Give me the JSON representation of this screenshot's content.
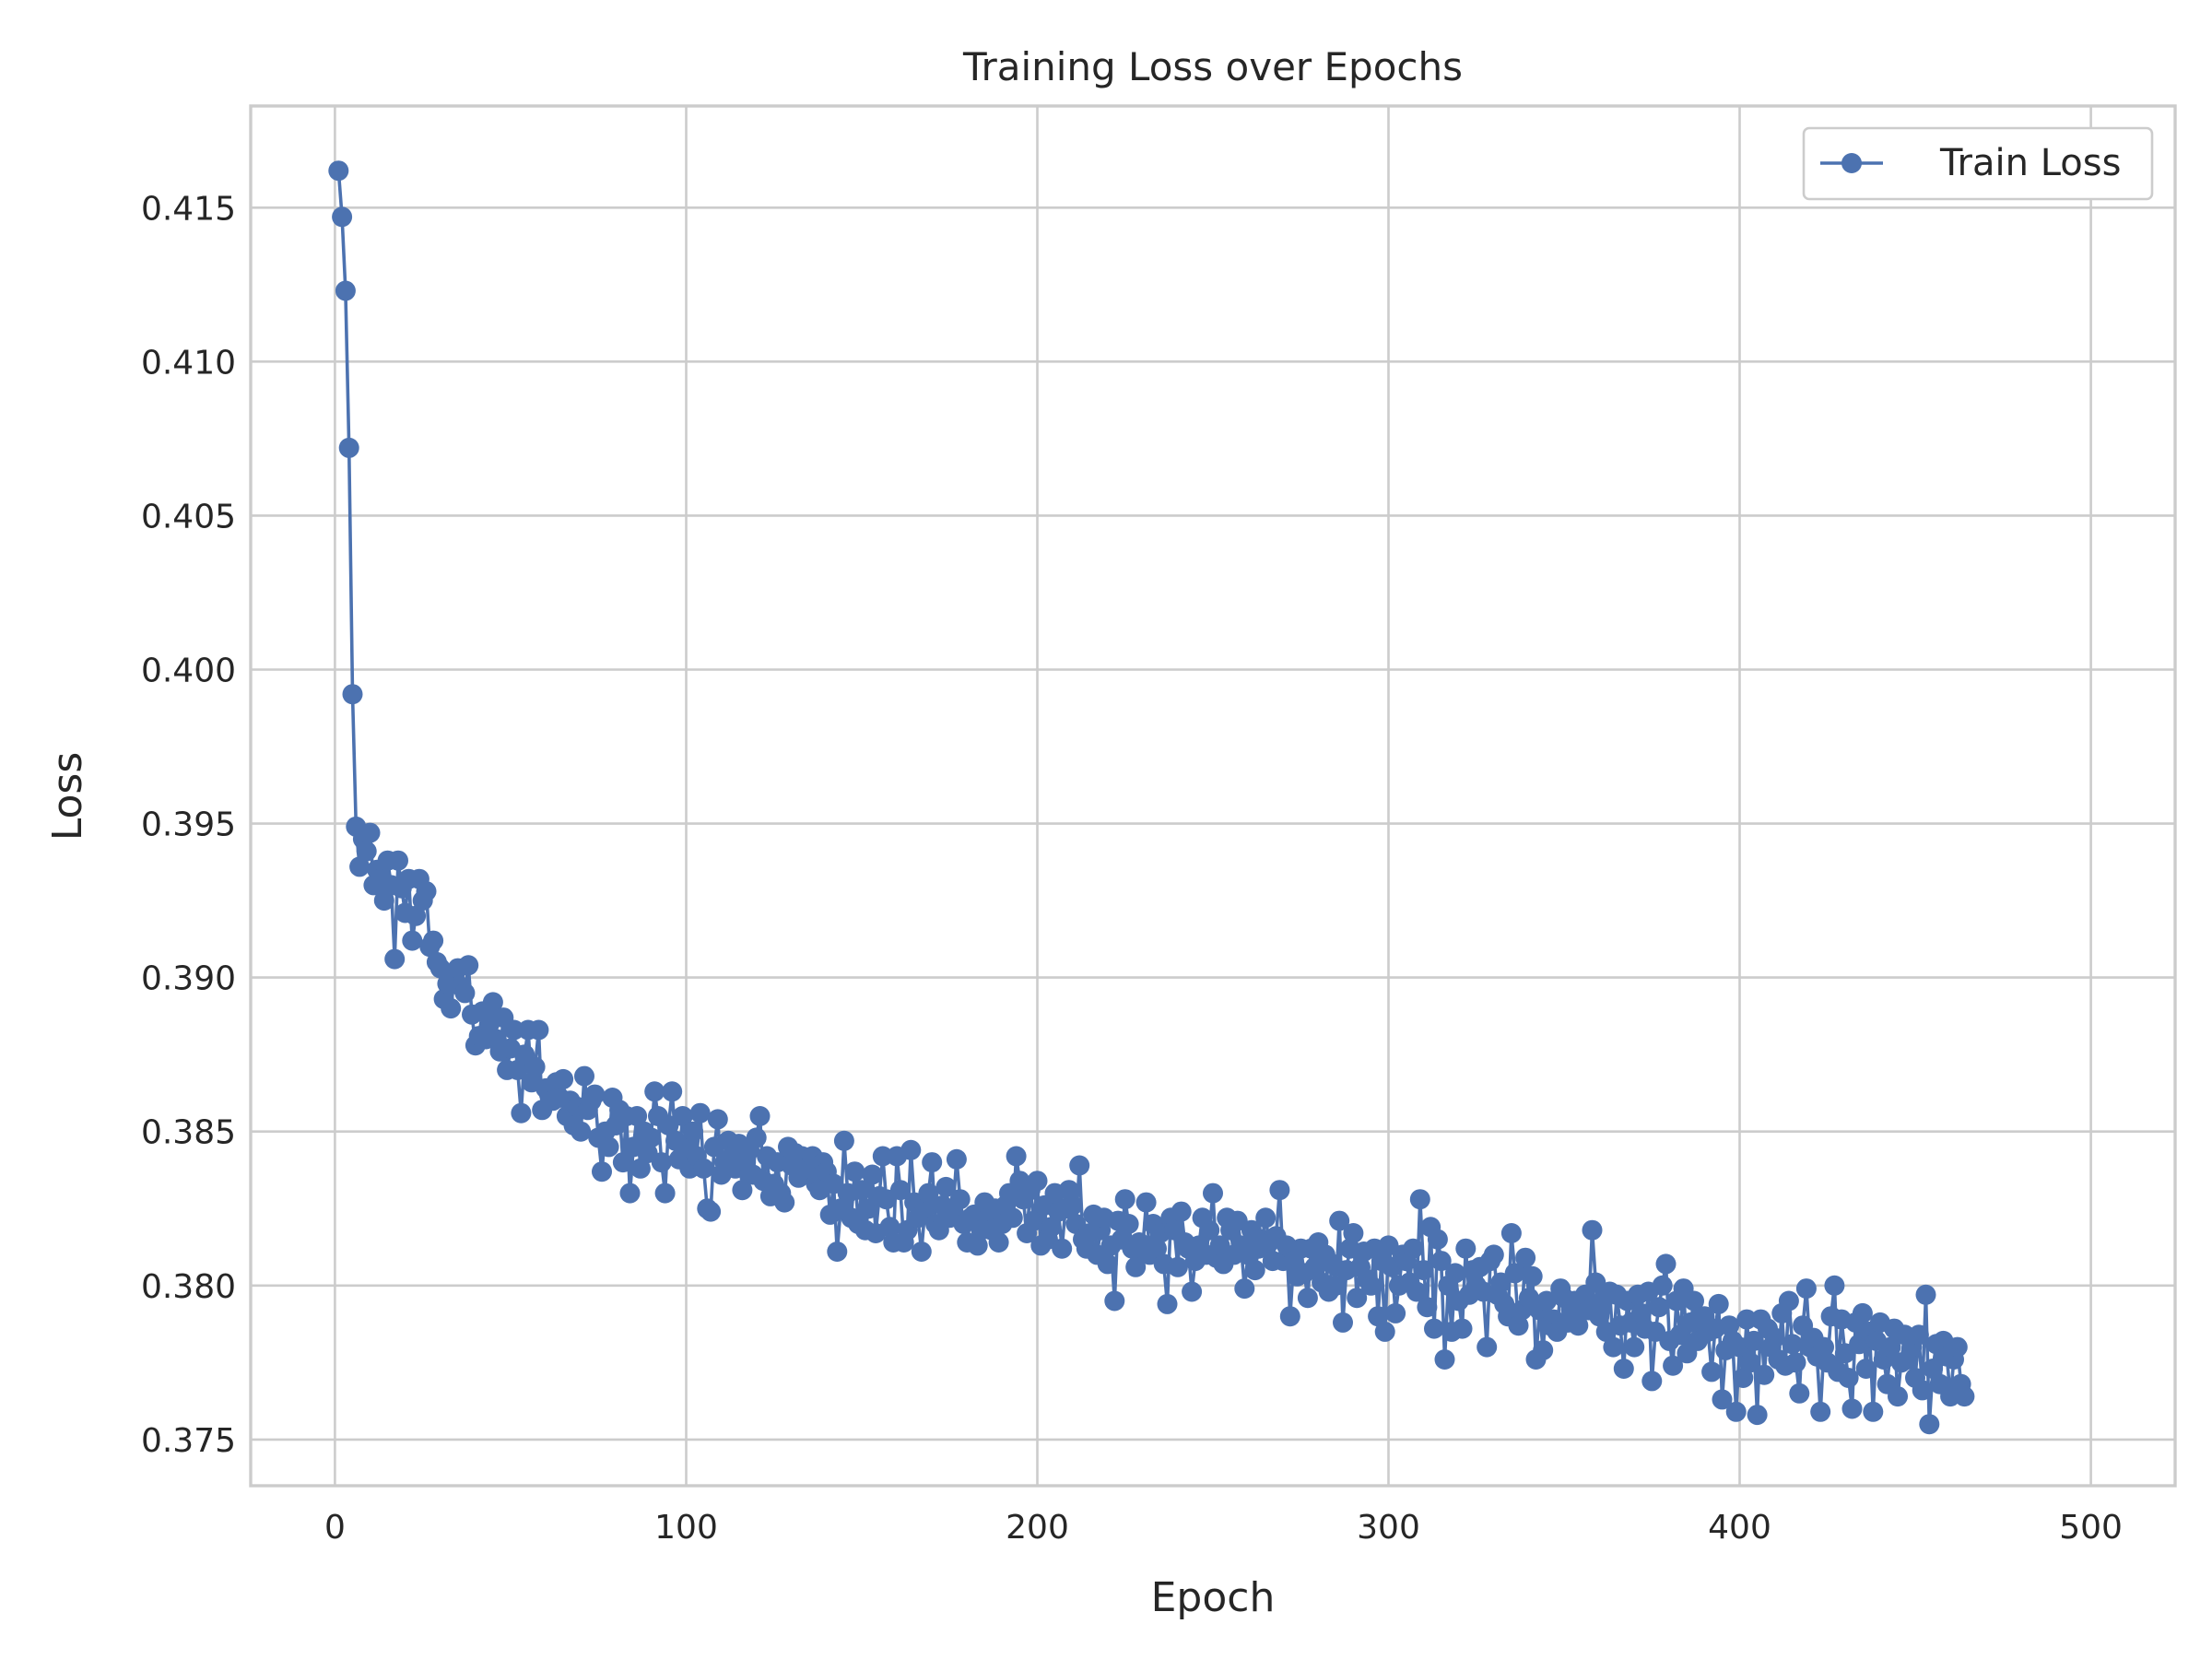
{
  "chart_data": {
    "type": "line",
    "title": "Training Loss over Epochs",
    "xlabel": "Epoch",
    "ylabel": "Loss",
    "xlim": [
      -24,
      524
    ],
    "ylim": [
      0.3735,
      0.4183
    ],
    "xticks": [
      0,
      100,
      200,
      300,
      400,
      500
    ],
    "xtick_labels": [
      "0",
      "100",
      "200",
      "300",
      "400",
      "500"
    ],
    "yticks": [
      0.375,
      0.38,
      0.385,
      0.39,
      0.395,
      0.4,
      0.405,
      0.41,
      0.415
    ],
    "ytick_labels": [
      "0.375",
      "0.380",
      "0.385",
      "0.390",
      "0.395",
      "0.400",
      "0.405",
      "0.410",
      "0.415"
    ],
    "grid": true,
    "legend_position": "top-right",
    "series": [
      {
        "name": "Train Loss",
        "color": "#4c72b0",
        "marker": "circle",
        "x_start": 1,
        "values": [
          0.4162,
          0.4147,
          0.4123,
          0.4072,
          0.3992,
          0.3949,
          0.3936,
          0.3945,
          0.3941,
          0.3947,
          0.393,
          0.3935,
          0.3932,
          0.3925,
          0.3938,
          0.393,
          0.3906,
          0.3938,
          0.3929,
          0.3921,
          0.3932,
          0.3912,
          0.392,
          0.3932,
          0.3925,
          0.3928,
          0.391,
          0.3912,
          0.3905,
          0.3903,
          0.3893,
          0.3898,
          0.389,
          0.39,
          0.3903,
          0.3897,
          0.3895,
          0.3904,
          0.3888,
          0.3878,
          0.3881,
          0.3889,
          0.388,
          0.3885,
          0.3892,
          0.388,
          0.3876,
          0.3887,
          0.387,
          0.3877,
          0.3883,
          0.387,
          0.3856,
          0.3875,
          0.3883,
          0.3866,
          0.3871,
          0.3883,
          0.3857,
          0.3864,
          0.3862,
          0.386,
          0.3866,
          0.3861,
          0.3867,
          0.3855,
          0.386,
          0.3852,
          0.3858,
          0.385,
          0.3868,
          0.3857,
          0.386,
          0.3862,
          0.3848,
          0.3837,
          0.385,
          0.3845,
          0.3861,
          0.3852,
          0.3857,
          0.384,
          0.3855,
          0.383,
          0.3845,
          0.3855,
          0.3838,
          0.385,
          0.3843,
          0.3848,
          0.3863,
          0.3855,
          0.384,
          0.383,
          0.3852,
          0.3863,
          0.3847,
          0.3841,
          0.3855,
          0.3845,
          0.3838,
          0.385,
          0.3842,
          0.3856,
          0.3838,
          0.3825,
          0.3824,
          0.3845,
          0.3854,
          0.3836,
          0.384,
          0.3847,
          0.3842,
          0.3838,
          0.3846,
          0.3831,
          0.384,
          0.3844,
          0.3836,
          0.3848,
          0.3855,
          0.3834,
          0.3842,
          0.3829,
          0.3833,
          0.384,
          0.383,
          0.3827,
          0.3845,
          0.3839,
          0.3843,
          0.3835,
          0.3842,
          0.3838,
          0.3836,
          0.3842,
          0.3833,
          0.3831,
          0.384,
          0.3837,
          0.3823,
          0.3833,
          0.3811,
          0.3825,
          0.3847,
          0.383,
          0.3822,
          0.3837,
          0.382,
          0.3831,
          0.3818,
          0.3825,
          0.3836,
          0.3817,
          0.3829,
          0.3842,
          0.3828,
          0.3819,
          0.3814,
          0.3842,
          0.3831,
          0.3814,
          0.3818,
          0.3844,
          0.3827,
          0.3822,
          0.3811,
          0.3825,
          0.383,
          0.384,
          0.382,
          0.3818,
          0.3826,
          0.3832,
          0.3822,
          0.3825,
          0.3841,
          0.3828,
          0.382,
          0.3814,
          0.3822,
          0.3823,
          0.3813,
          0.3818,
          0.3827,
          0.3822,
          0.3818,
          0.3825,
          0.3814,
          0.382,
          0.3826,
          0.383,
          0.3822,
          0.3842,
          0.3834,
          0.3828,
          0.3817,
          0.3831,
          0.3821,
          0.3834,
          0.3813,
          0.3826,
          0.3815,
          0.3819,
          0.383,
          0.3824,
          0.3812,
          0.3825,
          0.3831,
          0.3826,
          0.382,
          0.3839,
          0.3815,
          0.3812,
          0.3817,
          0.3823,
          0.381,
          0.3818,
          0.3822,
          0.3807,
          0.3813,
          0.3795,
          0.3821,
          0.3815,
          0.3828,
          0.382,
          0.3812,
          0.3806,
          0.3814,
          0.3812,
          0.3827,
          0.381,
          0.382,
          0.3812,
          0.3817,
          0.3807,
          0.3794,
          0.3822,
          0.3818,
          0.3806,
          0.3824,
          0.3814,
          0.3812,
          0.3798,
          0.3808,
          0.3813,
          0.3822,
          0.381,
          0.3818,
          0.383,
          0.3809,
          0.3813,
          0.3807,
          0.3822,
          0.3818,
          0.381,
          0.3821,
          0.3813,
          0.3799,
          0.381,
          0.3818,
          0.3805,
          0.3812,
          0.3815,
          0.3822,
          0.3814,
          0.3808,
          0.3816,
          0.3831,
          0.3808,
          0.3813,
          0.379,
          0.3808,
          0.3803,
          0.3812,
          0.3804,
          0.3796,
          0.3812,
          0.3806,
          0.3814,
          0.3801,
          0.381,
          0.3798,
          0.3807,
          0.38,
          0.3821,
          0.3788,
          0.3805,
          0.3812,
          0.3817,
          0.3796,
          0.3806,
          0.3811,
          0.3802,
          0.38,
          0.3812,
          0.379,
          0.3808,
          0.3785,
          0.3813,
          0.3806,
          0.3791,
          0.38,
          0.381,
          0.3808,
          0.3801,
          0.3812,
          0.3798,
          0.3828,
          0.3805,
          0.3793,
          0.3819,
          0.3786,
          0.3815,
          0.3808,
          0.3776,
          0.38,
          0.3785,
          0.3804,
          0.3795,
          0.3786,
          0.3812,
          0.3797,
          0.3805,
          0.38,
          0.3806,
          0.3798,
          0.378,
          0.3808,
          0.381,
          0.3797,
          0.3801,
          0.3794,
          0.379,
          0.3817,
          0.3804,
          0.3787,
          0.3792,
          0.3809,
          0.3796,
          0.3803,
          0.3776,
          0.3792,
          0.3779,
          0.3795,
          0.3787,
          0.3789,
          0.3785,
          0.3799,
          0.3796,
          0.3788,
          0.3792,
          0.3795,
          0.3787,
          0.3794,
          0.3797,
          0.3792,
          0.3818,
          0.3801,
          0.379,
          0.3795,
          0.3785,
          0.3798,
          0.378,
          0.3797,
          0.3787,
          0.3773,
          0.3795,
          0.3788,
          0.378,
          0.3797,
          0.3791,
          0.3786,
          0.3798,
          0.3769,
          0.3785,
          0.3793,
          0.38,
          0.3807,
          0.3782,
          0.3774,
          0.3795,
          0.3784,
          0.3799,
          0.3778,
          0.3788,
          0.3795,
          0.3782,
          0.3788,
          0.379,
          0.3785,
          0.3772,
          0.3786,
          0.3794,
          0.3763,
          0.3779,
          0.3787,
          0.3782,
          0.3759,
          0.378,
          0.377,
          0.3789,
          0.3775,
          0.3782,
          0.3758,
          0.3789,
          0.3771,
          0.3786,
          0.378,
          0.3783,
          0.3776,
          0.3791,
          0.3774,
          0.3795,
          0.3781,
          0.3775,
          0.3765,
          0.3787,
          0.3799,
          0.378,
          0.3783,
          0.3777,
          0.3759,
          0.378,
          0.3775,
          0.379,
          0.38,
          0.3772,
          0.3789,
          0.3778,
          0.377,
          0.376,
          0.3788,
          0.3781,
          0.3791,
          0.3773,
          0.3785,
          0.3759,
          0.3782,
          0.3788,
          0.3776,
          0.3768,
          0.378,
          0.3786,
          0.3764,
          0.3775,
          0.3784,
          0.3776,
          0.378,
          0.377,
          0.3784,
          0.3766,
          0.3797,
          0.3755,
          0.3773,
          0.3781,
          0.3768,
          0.3782,
          0.3777,
          0.3764,
          0.3776,
          0.378,
          0.3768,
          0.3764
        ]
      }
    ]
  }
}
